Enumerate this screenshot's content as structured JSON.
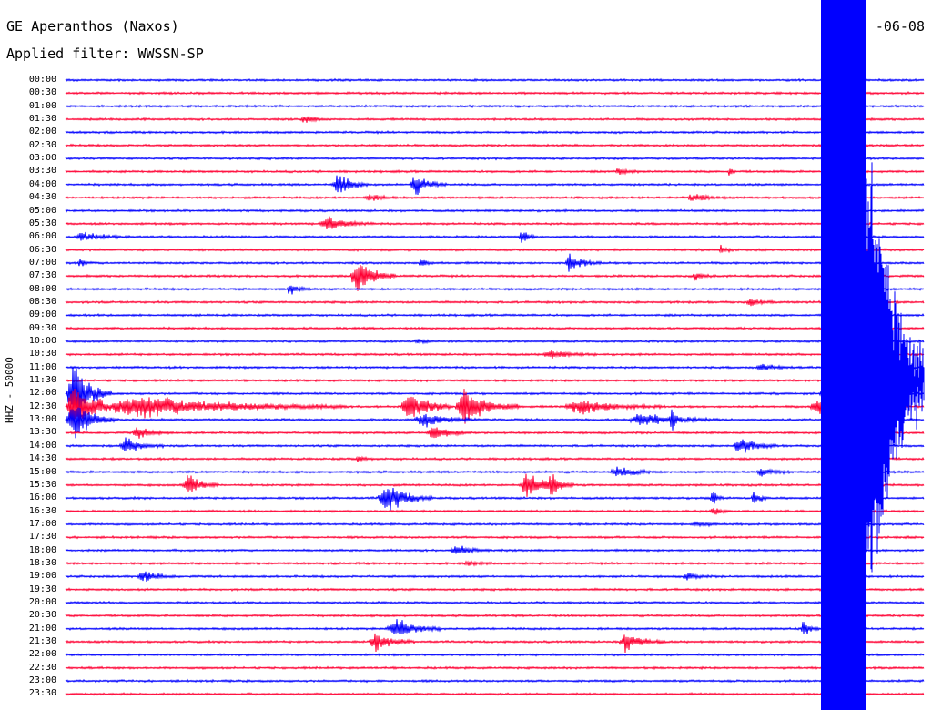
{
  "header": {
    "station": "GE Aperanthos (Naxos)",
    "filter": "Applied filter: WWSSN-SP",
    "date_partial": "-06-08"
  },
  "axis": {
    "channel_label": "HHZ - 50000"
  },
  "trace_colors": [
    "#0000ff",
    "#ff0033"
  ],
  "time_labels": [
    "00:00",
    "00:30",
    "01:00",
    "01:30",
    "02:00",
    "02:30",
    "03:00",
    "03:30",
    "04:00",
    "04:30",
    "05:00",
    "05:30",
    "06:00",
    "06:30",
    "07:00",
    "07:30",
    "08:00",
    "08:30",
    "09:00",
    "09:30",
    "10:00",
    "10:30",
    "11:00",
    "11:30",
    "12:00",
    "12:30",
    "13:00",
    "13:30",
    "14:00",
    "14:30",
    "15:00",
    "15:30",
    "16:00",
    "16:30",
    "17:00",
    "17:30",
    "18:00",
    "18:30",
    "19:00",
    "19:30",
    "20:00",
    "20:30",
    "21:00",
    "21:30",
    "22:00",
    "22:30",
    "23:00",
    "23:30"
  ]
}
